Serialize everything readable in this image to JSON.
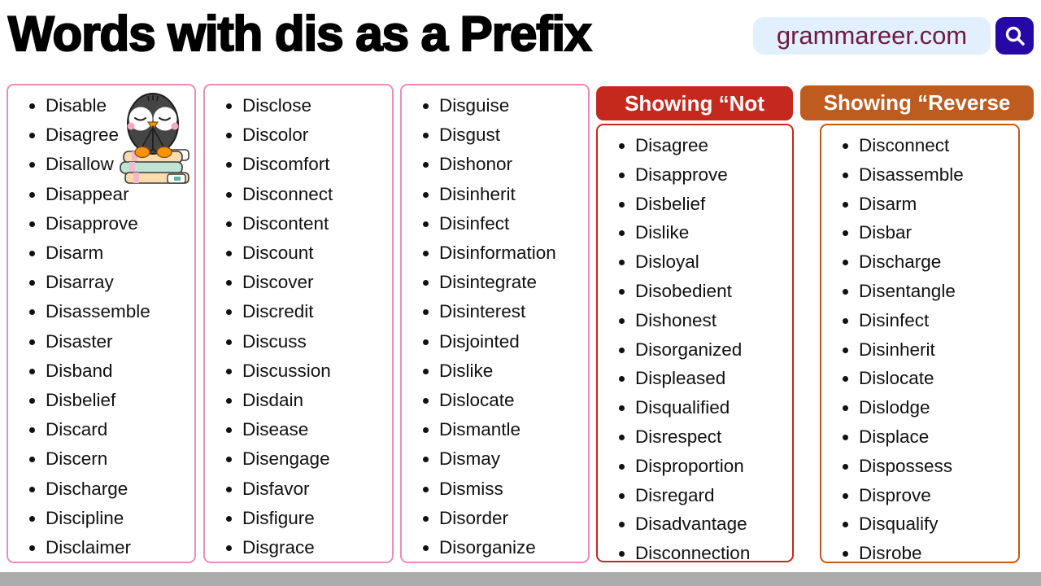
{
  "page": {
    "title": "Words with dis as a Prefix",
    "site": "grammareer.com",
    "icons": {
      "search": "magnifier"
    }
  },
  "columns": [
    {
      "name": "dis-words-1",
      "items": [
        "Disable",
        "Disagree",
        "Disallow",
        "Disappear",
        "Disapprove",
        "Disarm",
        "Disarray",
        "Disassemble",
        "Disaster",
        "Disband",
        "Disbelief",
        "Discard",
        "Discern",
        "Discharge",
        "Discipline",
        "Disclaimer"
      ]
    },
    {
      "name": "dis-words-2",
      "items": [
        "Disclose",
        "Discolor",
        "Discomfort",
        "Disconnect",
        "Discontent",
        "Discount",
        "Discover",
        "Discredit",
        "Discuss",
        "Discussion",
        "Disdain",
        "Disease",
        "Disengage",
        "Disfavor",
        "Disfigure",
        "Disgrace"
      ]
    },
    {
      "name": "dis-words-3",
      "items": [
        "Disguise",
        "Disgust",
        "Dishonor",
        "Disinherit",
        "Disinfect",
        "Disinformation",
        "Disintegrate",
        "Disinterest",
        "Disjointed",
        "Dislike",
        "Dislocate",
        "Dismantle",
        "Dismay",
        "Dismiss",
        "Disorder",
        "Disorganize"
      ]
    },
    {
      "name": "showing-not",
      "header": "Showing “Not",
      "items": [
        "Disagree",
        "Disapprove",
        "Disbelief",
        "Dislike",
        "Disloyal",
        "Disobedient",
        "Dishonest",
        "Disorganized",
        "Displeased",
        "Disqualified",
        "Disrespect",
        "Disproportion",
        "Disregard",
        "Disadvantage",
        "Disconnection"
      ]
    },
    {
      "name": "showing-reverse",
      "header": "Showing “Reverse",
      "items": [
        "Disconnect",
        "Disassemble",
        "Disarm",
        "Disbar",
        "Discharge",
        "Disentangle",
        "Disinfect",
        "Disinherit",
        "Dislocate",
        "Dislodge",
        "Displace",
        "Dispossess",
        "Disprove",
        "Disqualify",
        "Disrobe"
      ]
    }
  ],
  "mascot": "penguin-sitting-on-books",
  "colors": {
    "pink_border": "#e98cba",
    "red_accent": "#c5291e",
    "orange_accent": "#be5b1e",
    "search_pill_bg": "#e2f0fd",
    "search_text": "#6e1b44",
    "search_button_bg": "#2609a5",
    "bottom_bar_gray": "#acacac"
  }
}
